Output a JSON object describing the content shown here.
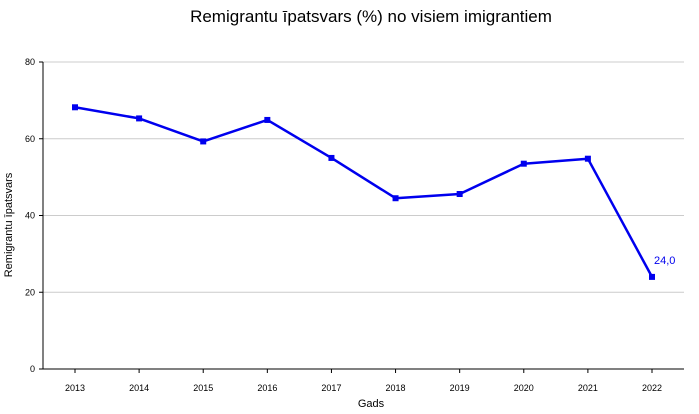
{
  "chart_data": {
    "type": "line",
    "title": "Remigrantu īpatsvars (%) no visiem imigrantiem",
    "xlabel": "Gads",
    "ylabel": "Remigrantu īpatsvars",
    "ylim": [
      0,
      80
    ],
    "yticks": [
      0,
      20,
      40,
      60,
      80
    ],
    "grid": true,
    "categories": [
      "2013",
      "2014",
      "2015",
      "2016",
      "2017",
      "2018",
      "2019",
      "2020",
      "2021",
      "2022"
    ],
    "series": [
      {
        "values": [
          68.2,
          65.3,
          59.3,
          64.9,
          55.0,
          44.5,
          45.6,
          53.5,
          54.8,
          24.0
        ],
        "color": "#0000ee"
      }
    ],
    "annotations": [
      {
        "category": "2022",
        "text": "24,0"
      }
    ]
  }
}
